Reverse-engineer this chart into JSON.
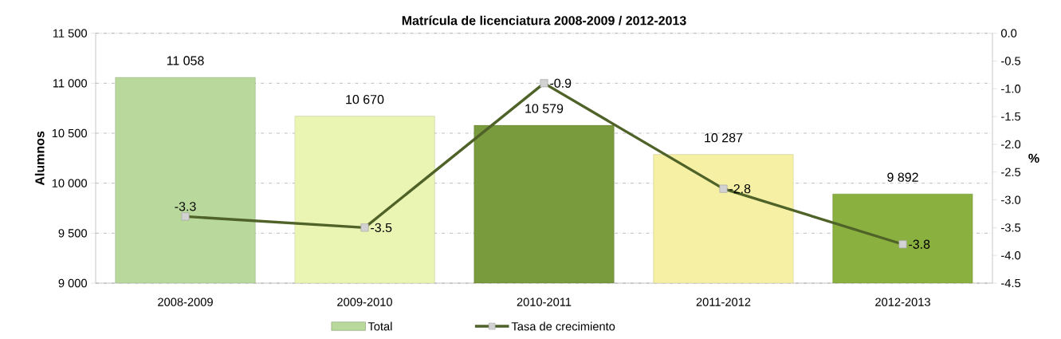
{
  "chart_data": {
    "type": "bar",
    "title": "Matrícula de licenciatura 2008-2009 / 2012-2013",
    "categories": [
      "2008-2009",
      "2009-2010",
      "2010-2011",
      "2011-2012",
      "2012-2013"
    ],
    "ylabel": "Alumnos",
    "y2label": "%",
    "ylim": [
      9000,
      11500
    ],
    "yticks": [
      {
        "value": 9000,
        "label": "9 000"
      },
      {
        "value": 9500,
        "label": "9 500"
      },
      {
        "value": 10000,
        "label": "10 000"
      },
      {
        "value": 10500,
        "label": "10 500"
      },
      {
        "value": 11000,
        "label": "11 000"
      },
      {
        "value": 11500,
        "label": "11 500"
      }
    ],
    "y2lim": [
      -4.5,
      0
    ],
    "y2ticks": [
      {
        "value": -4.5,
        "label": "-4.5"
      },
      {
        "value": -4,
        "label": "-4.0"
      },
      {
        "value": -3.5,
        "label": "-3.5"
      },
      {
        "value": -3,
        "label": "-3.0"
      },
      {
        "value": -2.5,
        "label": "-2.5"
      },
      {
        "value": -2,
        "label": "-2.0"
      },
      {
        "value": -1.5,
        "label": "-1.5"
      },
      {
        "value": -1,
        "label": "-1.0"
      },
      {
        "value": -0.5,
        "label": "-0.5"
      },
      {
        "value": 0,
        "label": "0.0"
      }
    ],
    "grid": "y",
    "legend": "bottom",
    "series": [
      {
        "name": "Total",
        "colors": [
          "#b8d89c",
          "#eaf5b4",
          "#7a9a3e",
          "#f5f0a4",
          "#8ab040"
        ],
        "values": [
          11058,
          10670,
          10579,
          10287,
          9892
        ],
        "value_labels": [
          "11 058",
          "10 670",
          "10 579",
          "10 287",
          "9 892"
        ]
      },
      {
        "name": "Tasa de crecimiento",
        "type": "line",
        "axis": "y2",
        "color": "#4f6228",
        "marker": "square",
        "values": [
          -3.3,
          -3.5,
          -0.9,
          -2.8,
          -3.8
        ],
        "value_labels": [
          "-3.3",
          "-3.5",
          "-0.9",
          "-2.8",
          "-3.8"
        ]
      }
    ]
  }
}
